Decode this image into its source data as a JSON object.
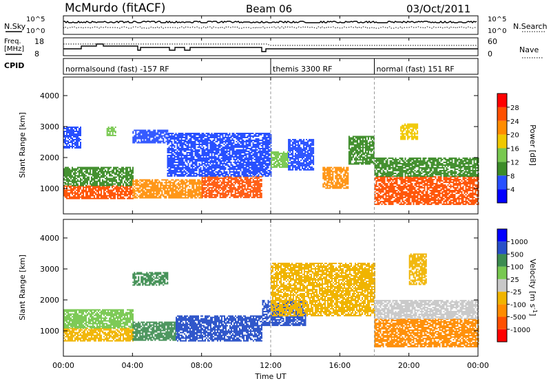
{
  "header": {
    "station": "McMurdo (fitACF)",
    "beam": "Beam 06",
    "date": "03/Oct/2011"
  },
  "top_panels": {
    "nsky_label": "N.Sky",
    "nsearch_label": "N.Search",
    "freq_label_line1": "Freq.",
    "freq_label_line2": "[MHz]",
    "nave_label": "Nave",
    "cpid_label": "CPID",
    "noise_ticks": [
      "10^5",
      "10^0"
    ],
    "freq_ticks": [
      "18",
      "8"
    ],
    "nave_ticks": [
      "60",
      "0"
    ]
  },
  "cpid_segments": [
    {
      "label": "normalsound (fast) -157 RF",
      "start_hour": 0
    },
    {
      "label": "themis 3300 RF",
      "start_hour": 12
    },
    {
      "label": "normal (fast) 151 RF",
      "start_hour": 18
    }
  ],
  "x_axis": {
    "label": "Time UT",
    "ticks": [
      "00:00",
      "04:00",
      "08:00",
      "12:00",
      "16:00",
      "20:00",
      "00:00"
    ],
    "range_hours": [
      0,
      24
    ]
  },
  "y_axis": {
    "label": "Slant Range [km]",
    "ticks": [
      "1000",
      "2000",
      "3000",
      "4000"
    ],
    "range_km": [
      180,
      4600
    ]
  },
  "power_colorbar": {
    "label": "Power [dB]",
    "ticks": [
      "4",
      "8",
      "12",
      "16",
      "20",
      "24",
      "28"
    ],
    "colors": [
      "#0000ff",
      "#2850ff",
      "#3c8c28",
      "#78c850",
      "#f0c800",
      "#ff8c00",
      "#ff5000",
      "#ff0000"
    ]
  },
  "velocity_colorbar": {
    "label_main": "Velocity",
    "label_unit": "[m s",
    "label_exp": "-1",
    "label_close": "]",
    "ticks": [
      "1000",
      "500",
      "100",
      "25",
      "-25",
      "-100",
      "-500",
      "-1000"
    ],
    "colors": [
      "#0000ff",
      "#2850c8",
      "#3c8c50",
      "#78c850",
      "#c8c8c8",
      "#f0b400",
      "#ff8c00",
      "#ff5000",
      "#ff0000"
    ]
  },
  "chart_data": {
    "type": "heatmap",
    "panels": [
      {
        "name": "power",
        "echo_regions": [
          {
            "t0": 0.0,
            "t1": 4.0,
            "r0": 700,
            "r1": 1100,
            "level": 28
          },
          {
            "t0": 0.0,
            "t1": 4.0,
            "r0": 1100,
            "r1": 1700,
            "level": 12
          },
          {
            "t0": 0.0,
            "t1": 1.0,
            "r0": 2300,
            "r1": 3000,
            "level": 8
          },
          {
            "t0": 2.5,
            "t1": 3.0,
            "r0": 2700,
            "r1": 3000,
            "level": 16
          },
          {
            "t0": 4.0,
            "t1": 6.0,
            "r0": 2500,
            "r1": 2900,
            "level": 10
          },
          {
            "t0": 4.0,
            "t1": 8.0,
            "r0": 700,
            "r1": 1300,
            "level": 24
          },
          {
            "t0": 8.0,
            "t1": 11.5,
            "r0": 700,
            "r1": 1400,
            "level": 28
          },
          {
            "t0": 6.0,
            "t1": 12.0,
            "r0": 1400,
            "r1": 2800,
            "level": 8
          },
          {
            "t0": 12.0,
            "t1": 13.0,
            "r0": 1700,
            "r1": 2200,
            "level": 16
          },
          {
            "t0": 13.0,
            "t1": 14.5,
            "r0": 1600,
            "r1": 2600,
            "level": 10
          },
          {
            "t0": 15.0,
            "t1": 16.5,
            "r0": 1000,
            "r1": 1700,
            "level": 24
          },
          {
            "t0": 16.5,
            "t1": 18.0,
            "r0": 1800,
            "r1": 2700,
            "level": 12
          },
          {
            "t0": 18.0,
            "t1": 24.0,
            "r0": 500,
            "r1": 1400,
            "level": 28
          },
          {
            "t0": 18.0,
            "t1": 24.0,
            "r0": 1400,
            "r1": 2000,
            "level": 12
          },
          {
            "t0": 19.5,
            "t1": 20.5,
            "r0": 2600,
            "r1": 3100,
            "level": 20
          }
        ]
      },
      {
        "name": "velocity",
        "echo_regions": [
          {
            "t0": 0.0,
            "t1": 4.0,
            "r0": 700,
            "r1": 1100,
            "level": -100
          },
          {
            "t0": 0.0,
            "t1": 4.0,
            "r0": 1100,
            "r1": 1700,
            "level": 25
          },
          {
            "t0": 4.0,
            "t1": 6.0,
            "r0": 2500,
            "r1": 2900,
            "level": 100
          },
          {
            "t0": 4.0,
            "t1": 6.5,
            "r0": 700,
            "r1": 1300,
            "level": 100
          },
          {
            "t0": 6.5,
            "t1": 11.5,
            "r0": 700,
            "r1": 1500,
            "level": 500
          },
          {
            "t0": 11.5,
            "t1": 14.0,
            "r0": 1200,
            "r1": 2000,
            "level": 500
          },
          {
            "t0": 12.0,
            "t1": 18.0,
            "r0": 1500,
            "r1": 3200,
            "level": -100
          },
          {
            "t0": 18.0,
            "t1": 24.0,
            "r0": 500,
            "r1": 1400,
            "level": -500
          },
          {
            "t0": 18.0,
            "t1": 24.0,
            "r0": 1400,
            "r1": 2000,
            "level": -25
          },
          {
            "t0": 20.0,
            "t1": 21.0,
            "r0": 2500,
            "r1": 3500,
            "level": -100
          }
        ]
      }
    ],
    "power_levels_db": [
      4,
      8,
      12,
      16,
      20,
      24,
      28
    ],
    "velocity_levels": [
      1000,
      500,
      100,
      25,
      -25,
      -100,
      -500,
      -1000
    ],
    "x_range_hours": [
      0,
      24
    ],
    "y_range_km": [
      180,
      4600
    ]
  }
}
